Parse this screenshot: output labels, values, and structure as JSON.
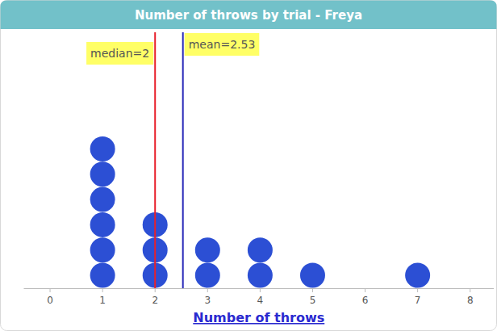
{
  "chart_data": {
    "type": "dot",
    "title": "Number of throws by trial - Freya",
    "x_label": "Number of throws",
    "x": [
      1,
      2,
      3,
      4,
      5,
      7
    ],
    "values": [
      6,
      3,
      2,
      2,
      1,
      1
    ],
    "color": "#2c4fd4",
    "xlim": [
      -0.5,
      8.45
    ],
    "xticks": [
      0,
      1,
      2,
      3,
      4,
      5,
      6,
      7,
      8
    ],
    "tick_labels": "x",
    "grid": false,
    "annotations": [
      {
        "label": "median=2",
        "value": 2,
        "color": "#e8202a"
      },
      {
        "label": "mean=2.53",
        "value": 2.53,
        "color": "#2a2ab8"
      }
    ]
  }
}
